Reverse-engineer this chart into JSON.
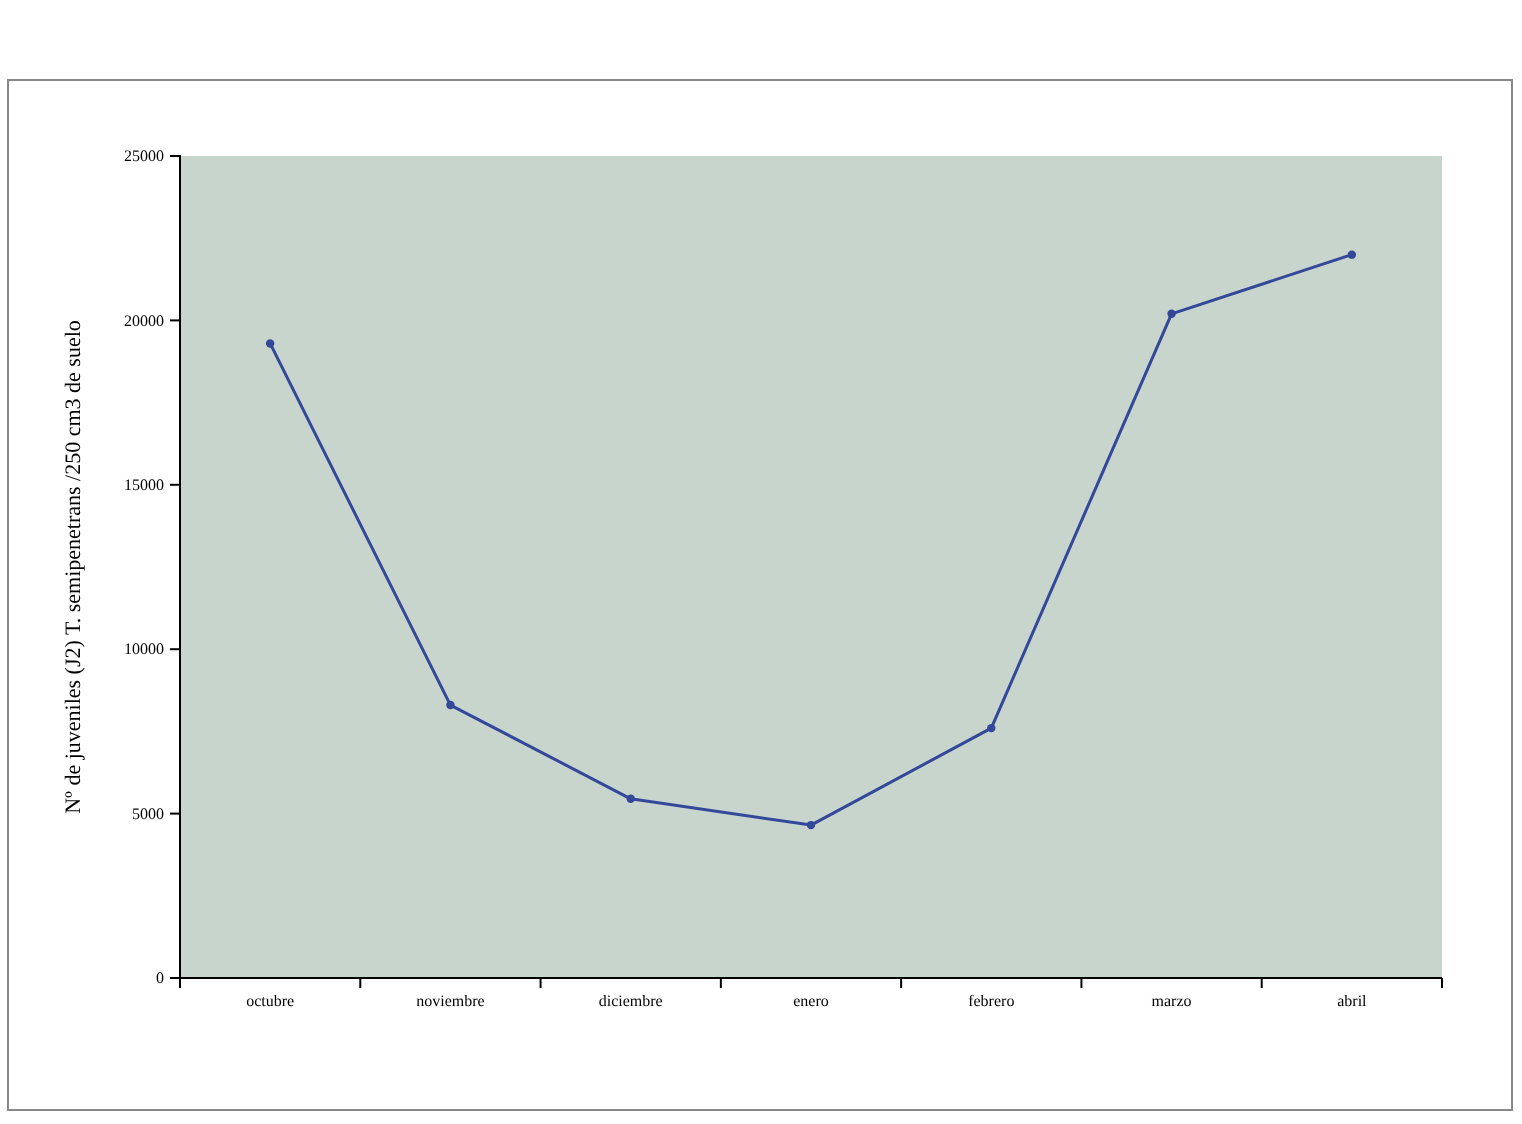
{
  "chart_data": {
    "type": "line",
    "ylabel": "Nº de juveniles (J2) T. semipenetrans /250 cm3 de suelo",
    "categories": [
      "octubre",
      "noviembre",
      "diciembre",
      "enero",
      "febrero",
      "marzo",
      "abril"
    ],
    "series": [
      {
        "color": "#34489a",
        "values": [
          19300,
          8300,
          5450,
          4650,
          7600,
          20200,
          22000
        ]
      }
    ],
    "ylim": [
      0,
      25000
    ],
    "yticks": [
      0,
      5000,
      10000,
      15000,
      20000,
      25000
    ],
    "marker": "circle",
    "line_style": "solid",
    "grid": false
  }
}
